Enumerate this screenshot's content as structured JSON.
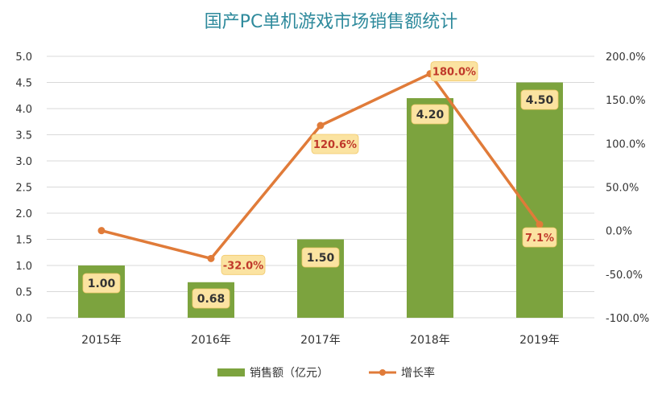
{
  "chart_data": {
    "type": "bar",
    "title": "国产PC单机游戏市场销售额统计",
    "categories": [
      "2015年",
      "2016年",
      "2017年",
      "2018年",
      "2019年"
    ],
    "series": [
      {
        "name": "销售额（亿元）",
        "kind": "bar",
        "axis": "left",
        "color": "#7ca33e",
        "values": [
          1.0,
          0.68,
          1.5,
          4.2,
          4.5
        ],
        "labels": [
          "1.00",
          "0.68",
          "1.50",
          "4.20",
          "4.50"
        ]
      },
      {
        "name": "增长率",
        "kind": "line",
        "axis": "right",
        "color": "#e07b39",
        "values": [
          0.0,
          -32.0,
          120.6,
          180.0,
          7.1
        ],
        "labels": [
          "",
          "-32.0%",
          "120.6%",
          "180.0%",
          "7.1%"
        ]
      }
    ],
    "y_left": {
      "min": 0,
      "max": 5.0,
      "ticks": [
        "0.0",
        "0.5",
        "1.0",
        "1.5",
        "2.0",
        "2.5",
        "3.0",
        "3.5",
        "4.0",
        "4.5",
        "5.0"
      ]
    },
    "y_right": {
      "min": -100,
      "max": 200,
      "ticks": [
        "-100.0%",
        "-50.0%",
        "0.0%",
        "50.0%",
        "100.0%",
        "150.0%",
        "200.0%"
      ]
    },
    "grid": true,
    "legend_position": "bottom-center",
    "label_bg": "#fbe3a1",
    "bar_label_color": "#333333",
    "line_label_color": "#c0392b"
  }
}
